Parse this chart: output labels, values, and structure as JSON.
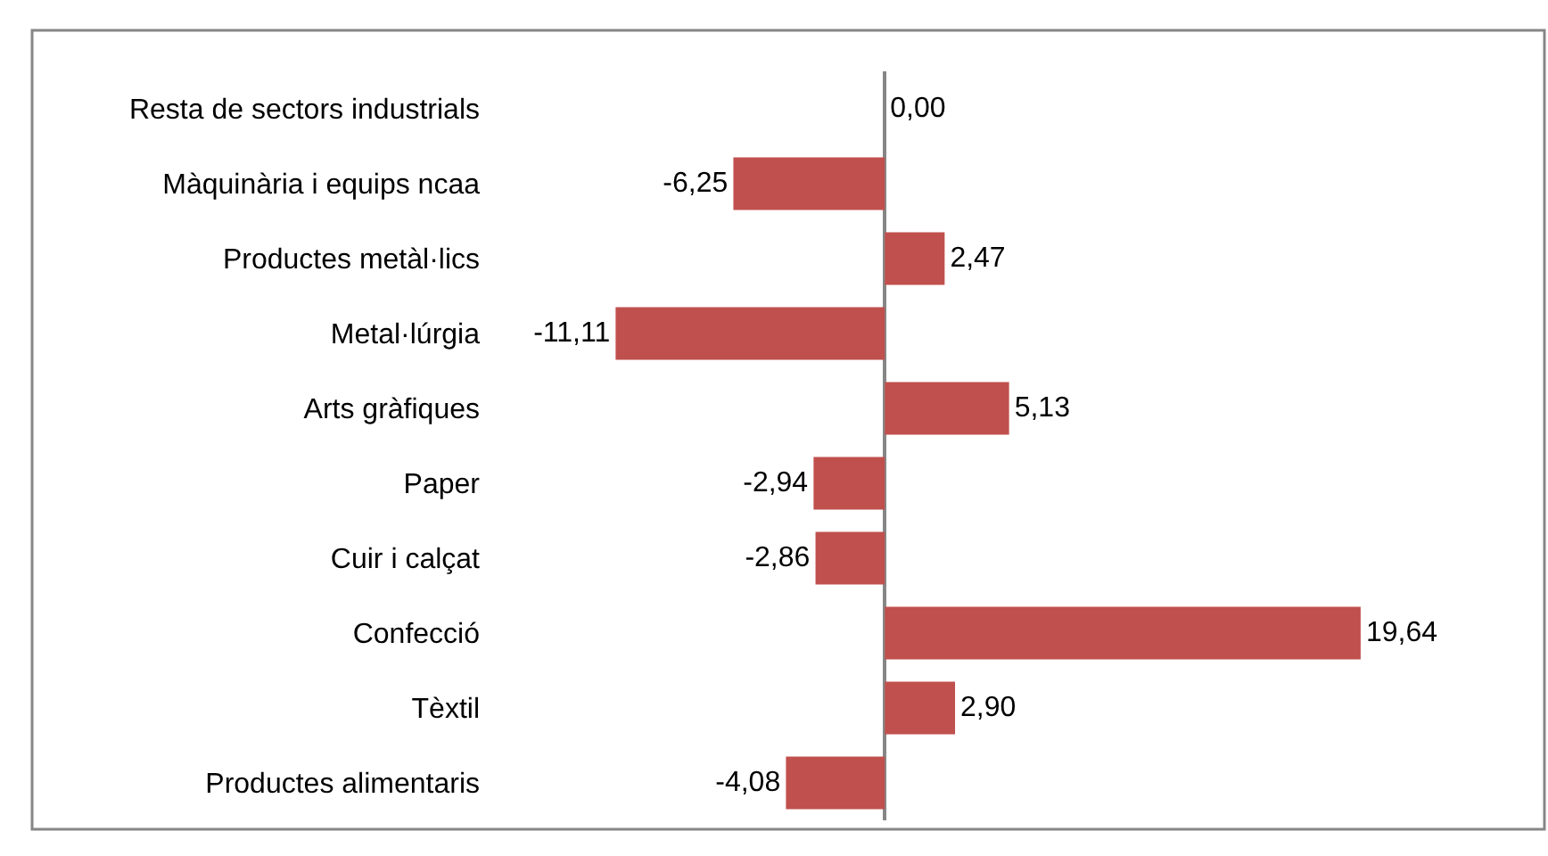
{
  "chart_data": {
    "type": "bar",
    "orientation": "horizontal",
    "categories": [
      "Resta de sectors industrials",
      "Màquinària i equips ncaa",
      "Productes metàl·lics",
      "Metal·lúrgia",
      "Arts gràfiques",
      "Paper",
      "Cuir i calçat",
      "Confecció",
      "Tèxtil",
      "Productes alimentaris"
    ],
    "values": [
      0.0,
      -6.25,
      2.47,
      -11.11,
      5.13,
      -2.94,
      -2.86,
      19.64,
      2.9,
      -4.08
    ],
    "value_labels": [
      "0,00",
      "-6,25",
      "2,47",
      "-11,11",
      "5,13",
      "-2,94",
      "-2,86",
      "19,64",
      "2,90",
      "-4,08"
    ],
    "color": "#c0504d",
    "tick_labels": "y",
    "grid": false,
    "legend": false
  }
}
